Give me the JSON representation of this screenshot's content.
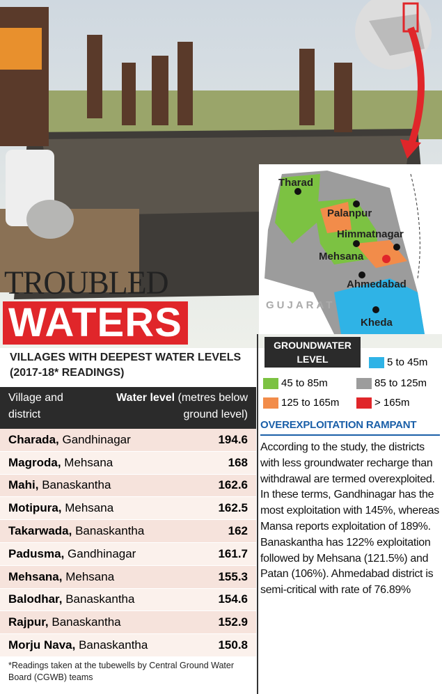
{
  "header": {
    "title_top": "TROUBLED",
    "title_main": "WATERS"
  },
  "map": {
    "labels": [
      "Tharad",
      "Palanpur",
      "Himmatnagar",
      "Mehsana",
      "Ahmedabad",
      "Kheda",
      "GUJARAT"
    ]
  },
  "legend": {
    "title": "GROUNDWATER LEVEL",
    "items": [
      {
        "label": "5 to 45m",
        "color": "#2fb3e6"
      },
      {
        "label": "45 to 85m",
        "color": "#7cc242"
      },
      {
        "label": "85 to 125m",
        "color": "#9c9c9c"
      },
      {
        "label": "125 to 165m",
        "color": "#f28c4a"
      },
      {
        "label": "> 165m",
        "color": "#e0262a"
      }
    ]
  },
  "table": {
    "title": "VILLAGES WITH DEEPEST WATER LEVELS (2017-18* READINGS)",
    "header": [
      "Village and district",
      "Water level",
      "(metres below ground level)"
    ],
    "rows": [
      {
        "village": "Charada,",
        "district": "Gandhinagar",
        "level": 194.6
      },
      {
        "village": "Magroda,",
        "district": "Mehsana",
        "level": 168
      },
      {
        "village": "Mahi,",
        "district": "Banaskantha",
        "level": 162.6
      },
      {
        "village": "Motipura,",
        "district": "Mehsana",
        "level": 162.5
      },
      {
        "village": "Takarwada,",
        "district": "Banaskantha",
        "level": 162
      },
      {
        "village": "Padusma,",
        "district": "Gandhinagar",
        "level": 161.7
      },
      {
        "village": "Mehsana,",
        "district": "Mehsana",
        "level": 155.3
      },
      {
        "village": "Balodhar,",
        "district": "Banaskantha",
        "level": 154.6
      },
      {
        "village": "Rajpur,",
        "district": "Banaskantha",
        "level": 152.9
      },
      {
        "village": "Morju Nava,",
        "district": "Banaskantha",
        "level": 150.8
      }
    ],
    "footnote": "*Readings taken at the tubewells by Central Ground Water Board (CGWB) teams"
  },
  "sidebar": {
    "title": "OVEREXPLOITATION RAMPANT",
    "body": "According to the study, the districts with less groundwater recharge than withdrawal are termed overexploited. In these terms, Gandhinagar has the most exploitation with 145%, whereas Mansa reports exploitation of 189%. Banaskantha has 122% exploitation followed by Mehsana (121.5%) and Patan (106%). Ahmedabad district is semi-critical with rate of 76.89%"
  }
}
